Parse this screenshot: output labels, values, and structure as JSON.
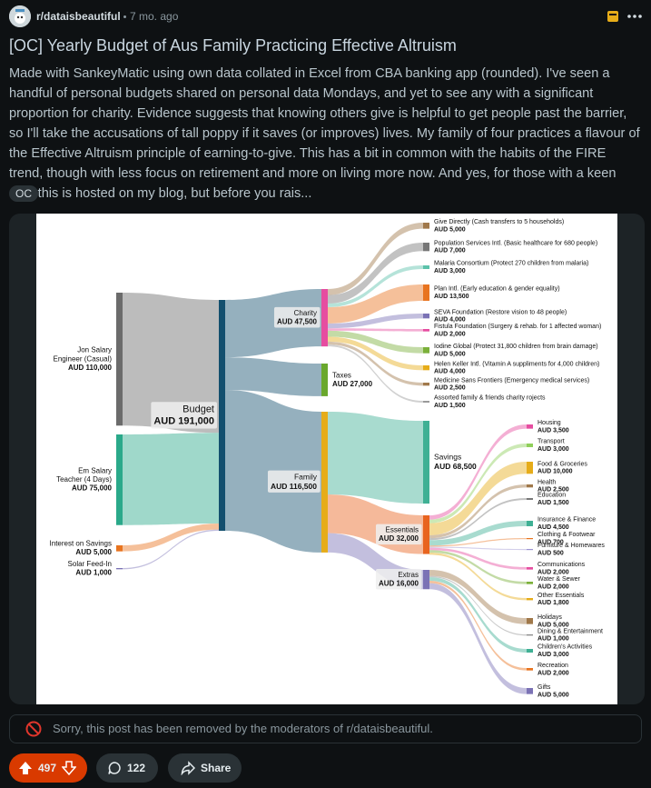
{
  "post": {
    "subreddit": "r/dataisbeautiful",
    "age": "7 mo. ago",
    "title": "[OC] Yearly Budget of Aus Family Practicing Effective Altruism",
    "body": "Made with SankeyMatic using own data collated in Excel from CBA banking app (rounded). I've seen a handful of personal budgets shared on personal data Mondays, and yet to see any with a significant proportion for charity. Evidence suggests that knowing others give is helpful to get people past the barrier, so I'll take the accusations of tall poppy if it saves (or improves) lives. My family of four practices a flavour of the Effective Altruism principle of earning-to-give. This has a bit in common with the habits of the FIRE trend, though with less focus on retirement and more on living more now. And yes, for those with a keen eye, this is hosted on my blog, but before you rais...",
    "flair": "OC",
    "removed_notice": "Sorry, this post has been removed by the moderators of r/dataisbeautiful.",
    "votes": 497,
    "comments": 122,
    "share": "Share"
  },
  "sankey": {
    "sources": [
      {
        "label": [
          "Jon Salary",
          "Engineer (Casual)"
        ],
        "value": 110000,
        "value_label": "AUD 110,000",
        "color": "#6b6b6b"
      },
      {
        "label": [
          "Em Salary",
          "Teacher (4 Days)"
        ],
        "value": 75000,
        "value_label": "AUD 75,000",
        "color": "#2aa98a"
      },
      {
        "label": [
          "Interest on Savings"
        ],
        "value": 5000,
        "value_label": "AUD 5,000",
        "color": "#e8741f"
      },
      {
        "label": [
          "Solar Feed-In"
        ],
        "value": 1000,
        "value_label": "AUD 1,000",
        "color": "#7b72b5"
      }
    ],
    "budget": {
      "label": [
        "Budget"
      ],
      "value": 191000,
      "value_label": "AUD 191,000",
      "color": "#134f6e"
    },
    "uses": [
      {
        "label": [
          "Charity"
        ],
        "value": 47500,
        "value_label": "AUD 47,500",
        "color": "#e64da0",
        "children": [
          {
            "label": [
              "Give Directly (Cash transfers to 5 households)"
            ],
            "value": 5000,
            "value_label": "AUD 5,000",
            "color": "#a0784a"
          },
          {
            "label": [
              "Population Services Intl. (Basic healthcare for 680 people)"
            ],
            "value": 7000,
            "value_label": "AUD 7,000",
            "color": "#777777"
          },
          {
            "label": [
              "Malaria Consortium (Protect 270 children from malaria)"
            ],
            "value": 3000,
            "value_label": "AUD 3,000",
            "color": "#5cc2aa"
          },
          {
            "label": [
              "Plan Intl. (Early education & gender equality)"
            ],
            "value": 13500,
            "value_label": "AUD 13,500",
            "color": "#e8741f"
          },
          {
            "label": [
              "SEVA Foundation (Restore vision to 48 people)"
            ],
            "value": 4000,
            "value_label": "AUD 4,000",
            "color": "#7b72b5"
          },
          {
            "label": [
              "Fistula Foundation (Surgery & rehab. for 1 affected woman)"
            ],
            "value": 2000,
            "value_label": "AUD 2,000",
            "color": "#e64da0"
          },
          {
            "label": [
              "Iodine Global (Protect 31,800 children from brain damage)"
            ],
            "value": 5000,
            "value_label": "AUD 5,000",
            "color": "#7bb03a"
          },
          {
            "label": [
              "Helen Keller Intl. (Vitamin A suppliments for 4,000 children)"
            ],
            "value": 4000,
            "value_label": "AUD 4,000",
            "color": "#e6ac19"
          },
          {
            "label": [
              "Medicine Sans Frontiers (Emergency medical services)"
            ],
            "value": 2500,
            "value_label": "AUD 2,500",
            "color": "#a0784a"
          },
          {
            "label": [
              "Assorted family & friends charity rojects"
            ],
            "value": 1500,
            "value_label": "AUD 1,500",
            "color": "#999999"
          }
        ]
      },
      {
        "label": [
          "Taxes"
        ],
        "value": 27000,
        "value_label": "AUD 27,000",
        "color": "#6aa82d"
      },
      {
        "label": [
          "Family"
        ],
        "value": 116500,
        "value_label": "AUD 116,500",
        "color": "#e6ac19",
        "children": [
          {
            "label": [
              "Savings"
            ],
            "value": 68500,
            "value_label": "AUD 68,500",
            "color": "#3fb094"
          },
          {
            "label": [
              "Essentials"
            ],
            "value": 32000,
            "value_label": "AUD 32,000",
            "color": "#e8641f",
            "children": [
              {
                "label": [
                  "Housing"
                ],
                "value": 3500,
                "value_label": "AUD 3,500",
                "color": "#e64da0"
              },
              {
                "label": [
                  "Transport"
                ],
                "value": 3000,
                "value_label": "AUD 3,000",
                "color": "#8fcf5a"
              },
              {
                "label": [
                  "Food & Groceries"
                ],
                "value": 10000,
                "value_label": "AUD 10,000",
                "color": "#e6ac19"
              },
              {
                "label": [
                  "Health"
                ],
                "value": 2500,
                "value_label": "AUD 2,500",
                "color": "#a0784a"
              },
              {
                "label": [
                  "Education"
                ],
                "value": 1500,
                "value_label": "AUD 1,500",
                "color": "#777777"
              },
              {
                "label": [
                  "Insurance & Finance"
                ],
                "value": 4500,
                "value_label": "AUD 4,500",
                "color": "#3fb094"
              },
              {
                "label": [
                  "Clothing & Footwear"
                ],
                "value": 700,
                "value_label": "AUD 700",
                "color": "#e8741f"
              },
              {
                "label": [
                  "Furniture & Homewares"
                ],
                "value": 500,
                "value_label": "AUD 500",
                "color": "#9b93d0"
              },
              {
                "label": [
                  "Communications"
                ],
                "value": 2000,
                "value_label": "AUD 2,000",
                "color": "#e64da0"
              },
              {
                "label": [
                  "Water & Sewer"
                ],
                "value": 2000,
                "value_label": "AUD 2,000",
                "color": "#7bb03a"
              },
              {
                "label": [
                  "Other Essentials"
                ],
                "value": 1800,
                "value_label": "AUD 1,800",
                "color": "#e6ac19"
              }
            ]
          },
          {
            "label": [
              "Extras"
            ],
            "value": 16000,
            "value_label": "AUD 16,000",
            "color": "#7b72b5",
            "children": [
              {
                "label": [
                  "Holidays"
                ],
                "value": 5000,
                "value_label": "AUD 5,000",
                "color": "#a0784a"
              },
              {
                "label": [
                  "Dining & Entertainment"
                ],
                "value": 1000,
                "value_label": "AUD 1,000",
                "color": "#888888"
              },
              {
                "label": [
                  "Children's Activities"
                ],
                "value": 3000,
                "value_label": "AUD 3,000",
                "color": "#3fb094"
              },
              {
                "label": [
                  "Recreation"
                ],
                "value": 2000,
                "value_label": "AUD 2,000",
                "color": "#e8741f"
              },
              {
                "label": [
                  "Gifts"
                ],
                "value": 5000,
                "value_label": "AUD 5,000",
                "color": "#7b72b5"
              }
            ]
          }
        ]
      }
    ]
  }
}
